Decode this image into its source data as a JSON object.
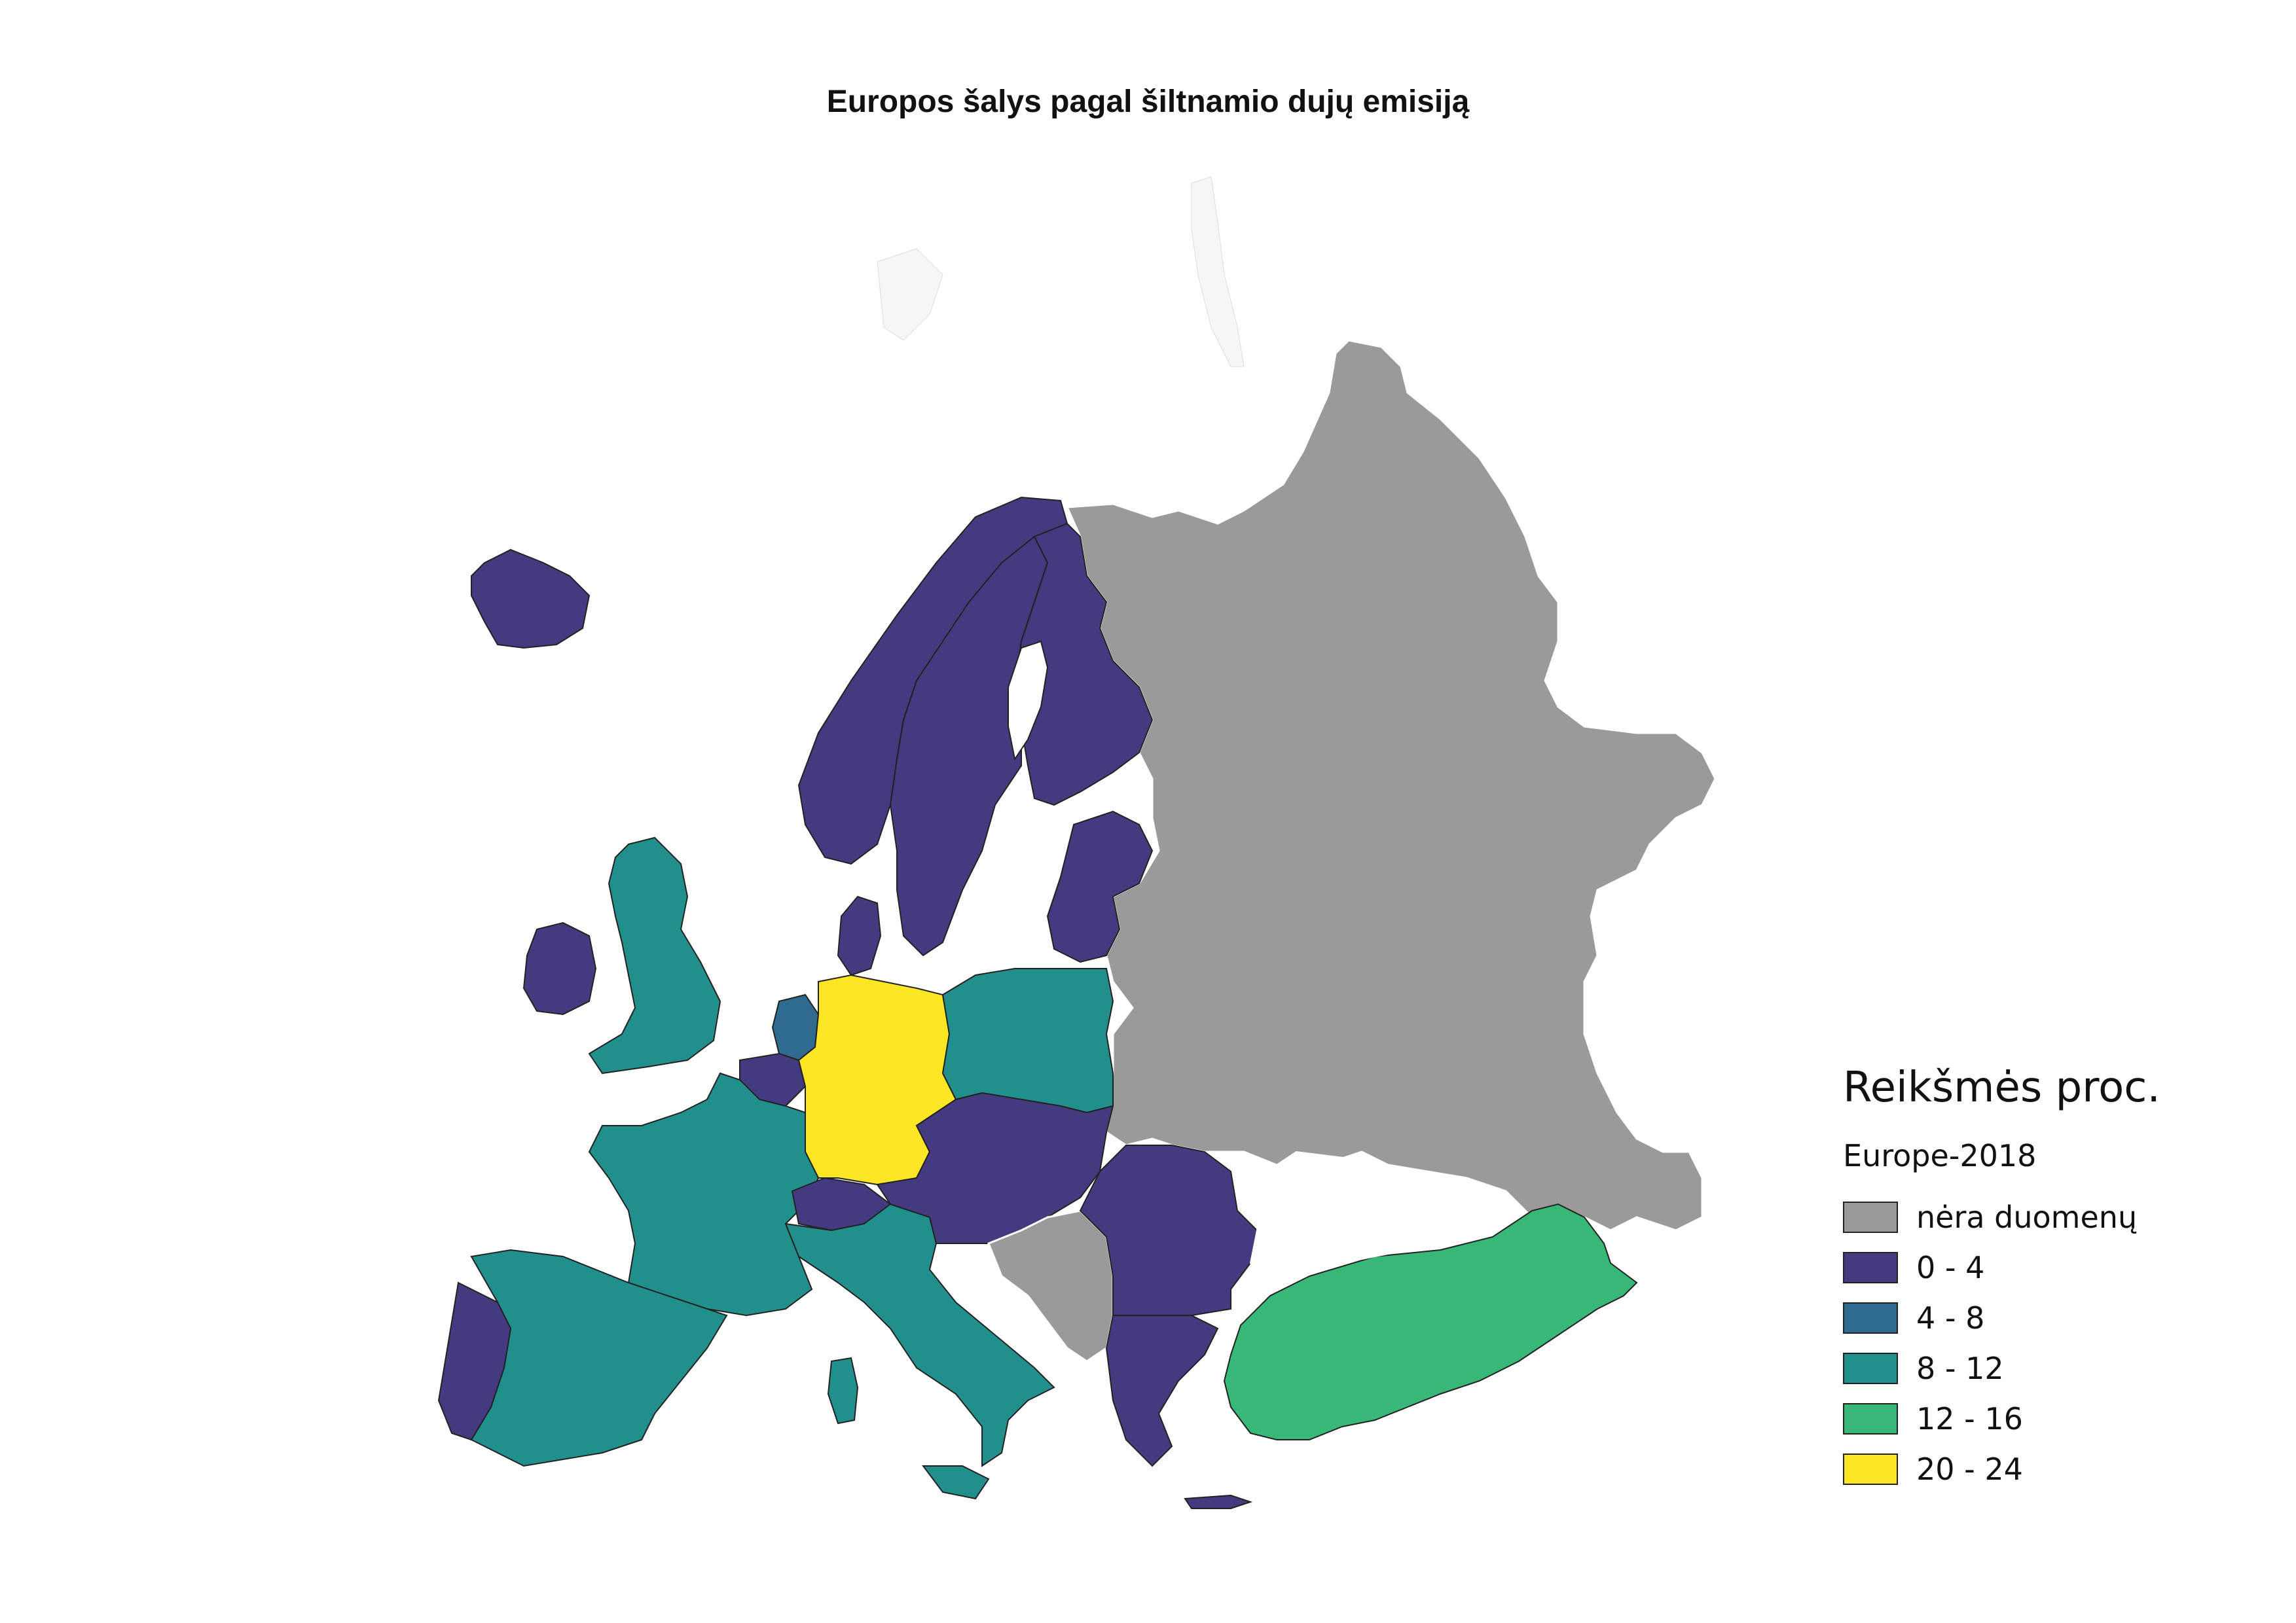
{
  "title": "Europos šalys pagal šiltnamio dujų emisiją",
  "legend": {
    "title": "Reikšmės proc.",
    "subtitle": "Europe-2018",
    "items": [
      {
        "label": "nėra duomenų",
        "color": "#9a9a9a"
      },
      {
        "label": "0 - 4",
        "color": "#433a80"
      },
      {
        "label": "4 - 8",
        "color": "#2f6b8e"
      },
      {
        "label": "8 - 12",
        "color": "#21908c"
      },
      {
        "label": "12 - 16",
        "color": "#37b877"
      },
      {
        "label": "20 - 24",
        "color": "#fde725"
      }
    ]
  },
  "classes": {
    "no_data": "#9a9a9a",
    "c0_4": "#433a80",
    "c4_8": "#2f6b8e",
    "c8_12": "#21908c",
    "c12_16": "#37b877",
    "c20_24": "#fde725"
  }
}
